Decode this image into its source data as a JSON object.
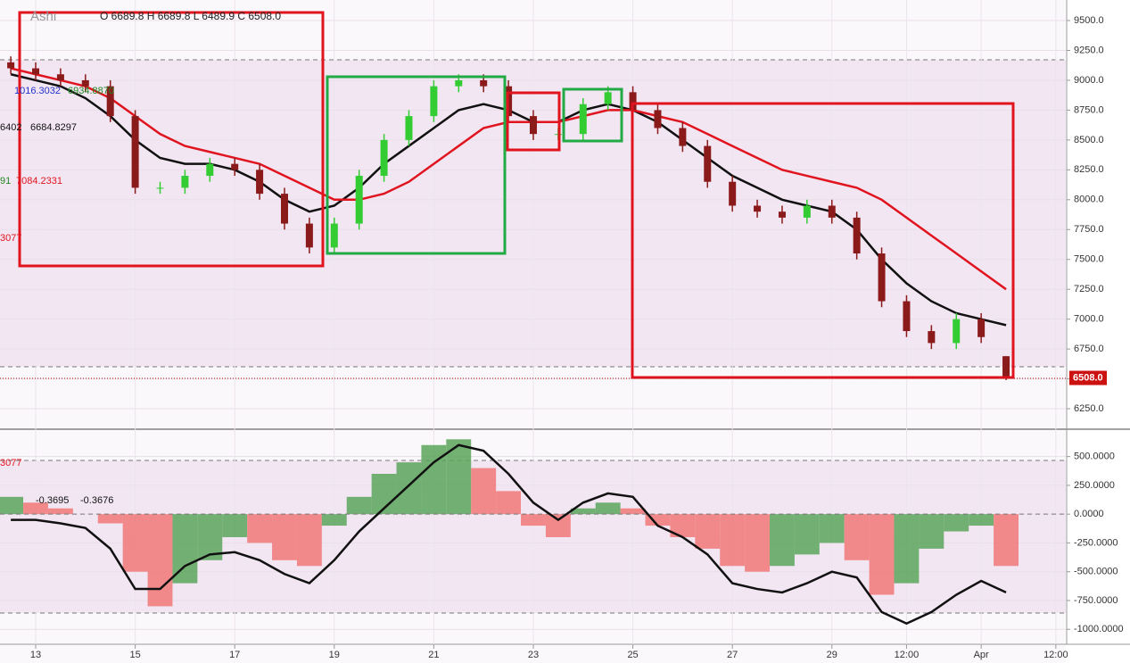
{
  "chart_data": [
    {
      "type": "candlestick",
      "annotations": [
        "Ashi",
        "O 6689.8 H 6689.8 L 6489.9 C 6508.0",
        "1016.3032",
        "6934.8870",
        "6402",
        "6684.8297",
        "91",
        "7084.2331",
        "3077"
      ],
      "x": [
        -0.5,
        0,
        0.5,
        1,
        1.5,
        2,
        2.5,
        3,
        3.5,
        4,
        4.5,
        5,
        5.5,
        6,
        6.5,
        7,
        7.5,
        8,
        8.5,
        9,
        9.5,
        10,
        10.5,
        11,
        11.5,
        12,
        12.5,
        13,
        13.5,
        14,
        14.5,
        15,
        15.5,
        16,
        16.5,
        17,
        17.5,
        18,
        18.5,
        19,
        19.5
      ],
      "open": [
        9150,
        9100,
        9050,
        9000,
        8950,
        8700,
        8100,
        8100,
        8200,
        8300,
        8250,
        8050,
        7800,
        7600,
        7800,
        8200,
        8500,
        8700,
        8950,
        9000,
        8950,
        8700,
        8550,
        8550,
        8800,
        8900,
        8750,
        8600,
        8450,
        8150,
        7950,
        7900,
        7850,
        7950,
        7850,
        7550,
        7150,
        6900,
        6800,
        7000,
        6689.8
      ],
      "high": [
        9200,
        9150,
        9100,
        9050,
        9000,
        8750,
        8150,
        8250,
        8350,
        8350,
        8300,
        8100,
        7850,
        7850,
        8250,
        8550,
        8750,
        9000,
        9050,
        9050,
        9000,
        8750,
        8600,
        8850,
        8950,
        8950,
        8800,
        8650,
        8500,
        8200,
        8000,
        7950,
        8000,
        8000,
        7900,
        7600,
        7200,
        6950,
        7050,
        7050,
        6689.8
      ],
      "low": [
        9050,
        9000,
        8950,
        8900,
        8650,
        8050,
        8050,
        8050,
        8150,
        8200,
        8000,
        7750,
        7550,
        7550,
        7750,
        8150,
        8450,
        8650,
        8900,
        8900,
        8650,
        8500,
        8500,
        8500,
        8750,
        8700,
        8550,
        8400,
        8100,
        7900,
        7850,
        7800,
        7800,
        7800,
        7500,
        7100,
        6850,
        6750,
        6750,
        6800,
        6489.9
      ],
      "close": [
        9100,
        9050,
        9000,
        8950,
        8700,
        8100,
        8100,
        8200,
        8300,
        8250,
        8050,
        7800,
        7600,
        7800,
        8200,
        8500,
        8700,
        8950,
        9000,
        8950,
        8700,
        8550,
        8550,
        8800,
        8900,
        8750,
        8600,
        8450,
        8150,
        7950,
        7900,
        7850,
        7950,
        7850,
        7550,
        7150,
        6900,
        6800,
        7000,
        6850,
        6508.0
      ],
      "up_color": "#33cc33",
      "down_color": "#8b1a1a",
      "lines": [
        {
          "color": "#111111",
          "values": [
            9050,
            9000,
            8950,
            8850,
            8700,
            8500,
            8350,
            8300,
            8300,
            8250,
            8150,
            8000,
            7900,
            7950,
            8100,
            8300,
            8450,
            8600,
            8750,
            8800,
            8750,
            8650,
            8650,
            8750,
            8800,
            8750,
            8650,
            8500,
            8350,
            8200,
            8100,
            8000,
            7950,
            7900,
            7750,
            7500,
            7300,
            7150,
            7050,
            7000,
            6950
          ]
        },
        {
          "color": "#e0141e",
          "values": [
            9100,
            9050,
            9000,
            8950,
            8850,
            8700,
            8550,
            8450,
            8400,
            8350,
            8300,
            8200,
            8100,
            8000,
            8000,
            8050,
            8150,
            8300,
            8450,
            8600,
            8650,
            8650,
            8650,
            8700,
            8750,
            8750,
            8700,
            8650,
            8550,
            8450,
            8350,
            8250,
            8200,
            8150,
            8100,
            8000,
            7850,
            7700,
            7550,
            7400,
            7250
          ]
        }
      ],
      "last_price": {
        "value": 6508.0,
        "label": "6508.0"
      },
      "xlim": [
        -0.717,
        20.7
      ],
      "xticks": [
        {
          "value": 0,
          "label": "13"
        },
        {
          "value": 2,
          "label": "15"
        },
        {
          "value": 4,
          "label": "17"
        },
        {
          "value": 6,
          "label": "19"
        },
        {
          "value": 8,
          "label": "21"
        },
        {
          "value": 10,
          "label": "23"
        },
        {
          "value": 12,
          "label": "25"
        },
        {
          "value": 14,
          "label": "27"
        },
        {
          "value": 16,
          "label": "29"
        },
        {
          "value": 17.5,
          "label": "12:00"
        },
        {
          "value": 19,
          "label": "Apr"
        },
        {
          "value": 20.5,
          "label": "12:00"
        }
      ],
      "ylim": [
        6086,
        9672
      ],
      "yticks": [
        {
          "value": 9500,
          "label": "9500.0"
        },
        {
          "value": 9250,
          "label": "9250.0"
        },
        {
          "value": 9000,
          "label": "9000.0"
        },
        {
          "value": 8750,
          "label": "8750.0"
        },
        {
          "value": 8500,
          "label": "8500.0"
        },
        {
          "value": 8250,
          "label": "8250.0"
        },
        {
          "value": 8000,
          "label": "8000.0"
        },
        {
          "value": 7750,
          "label": "7750.0"
        },
        {
          "value": 7500,
          "label": "7500.0"
        },
        {
          "value": 7250,
          "label": "7250.0"
        },
        {
          "value": 7000,
          "label": "7000.0"
        },
        {
          "value": 6750,
          "label": "6750.0"
        },
        {
          "value": 6500,
          "label": "6500.0"
        },
        {
          "value": 6250,
          "label": "6250.0"
        }
      ]
    },
    {
      "type": "bar",
      "annotations": [
        "3077",
        "-0.3695",
        "-0.3676"
      ],
      "x": [
        -0.5,
        0,
        0.5,
        1,
        1.5,
        2,
        2.5,
        3,
        3.5,
        4,
        4.5,
        5,
        5.5,
        6,
        6.5,
        7,
        7.5,
        8,
        8.5,
        9,
        9.5,
        10,
        10.5,
        11,
        11.5,
        12,
        12.5,
        13,
        13.5,
        14,
        14.5,
        15,
        15.5,
        16,
        16.5,
        17,
        17.5,
        18,
        18.5,
        19,
        19.5
      ],
      "values": [
        150,
        100,
        50,
        0,
        -80,
        -500,
        -800,
        -600,
        -400,
        -200,
        -250,
        -400,
        -450,
        -100,
        150,
        350,
        450,
        600,
        650,
        400,
        200,
        -100,
        -200,
        50,
        100,
        50,
        -100,
        -200,
        -300,
        -450,
        -500,
        -450,
        -350,
        -250,
        -400,
        -700,
        -600,
        -300,
        -150,
        -100,
        -450
      ],
      "up_color": "#5aa55a",
      "down_color": "#f07878",
      "lines": [
        {
          "color": "#111111",
          "values": [
            -50,
            -50,
            -80,
            -120,
            -300,
            -650,
            -650,
            -450,
            -350,
            -330,
            -400,
            -520,
            -600,
            -400,
            -150,
            50,
            250,
            450,
            600,
            550,
            350,
            100,
            -50,
            100,
            180,
            150,
            -100,
            -200,
            -350,
            -600,
            -650,
            -680,
            -600,
            -500,
            -550,
            -850,
            -950,
            -850,
            -700,
            -580,
            -680
          ]
        }
      ],
      "xlim": [
        -0.717,
        20.7
      ],
      "ylim": [
        -1130,
        722
      ],
      "yticks": [
        {
          "value": 500,
          "label": "500.0000"
        },
        {
          "value": 250,
          "label": "250.0000"
        },
        {
          "value": 0,
          "label": "0.0000"
        },
        {
          "value": -250,
          "label": "-250.0000"
        },
        {
          "value": -500,
          "label": "-500.0000"
        },
        {
          "value": -750,
          "label": "-750.0000"
        },
        {
          "value": -1000,
          "label": "-1000.0000"
        }
      ]
    }
  ]
}
